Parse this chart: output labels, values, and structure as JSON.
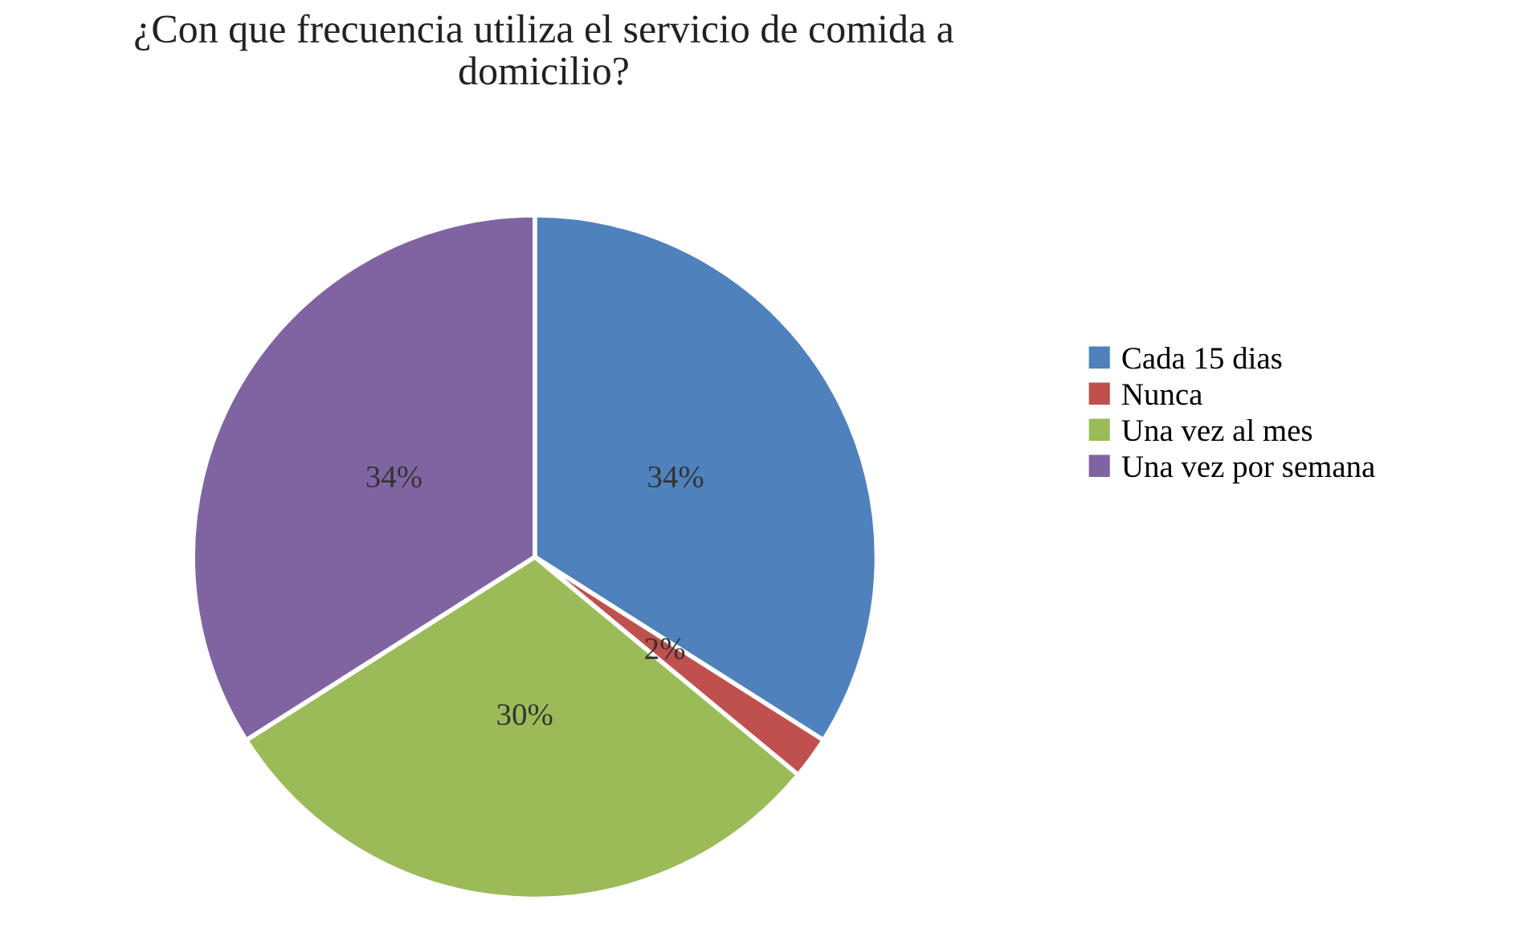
{
  "chart_data": {
    "type": "pie",
    "title": "¿Con que frecuencia utiliza el servicio de comida a domicilio?",
    "categories": [
      "Cada 15 dias",
      "Nunca",
      "Una vez al mes",
      "Una vez por semana"
    ],
    "values": [
      34,
      2,
      30,
      34
    ],
    "colors": [
      "#4f81bd",
      "#c0504d",
      "#9bbb59",
      "#8064a2"
    ],
    "value_labels": [
      "34%",
      "2%",
      "30%",
      "34%"
    ],
    "legend": "right"
  }
}
